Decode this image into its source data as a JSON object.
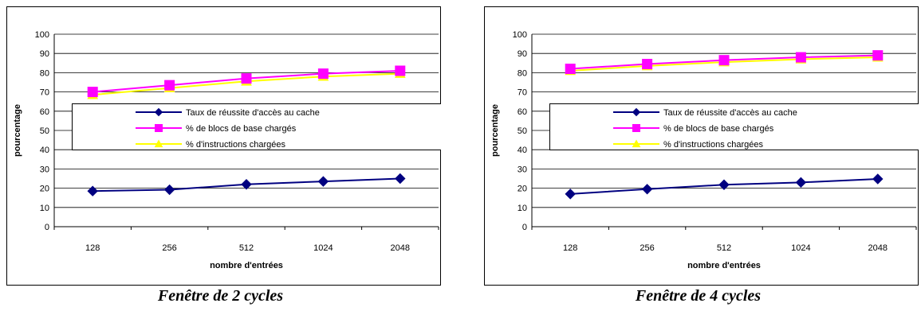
{
  "colors": {
    "series1": "#000080",
    "series2": "#ff00ff",
    "series3": "#ffff00",
    "grid": "#000000",
    "border": "#000000"
  },
  "chart_data": [
    {
      "type": "line",
      "caption": "Fenêtre de 2 cycles",
      "categories": [
        "128",
        "256",
        "512",
        "1024",
        "2048"
      ],
      "xlabel": "nombre d'entrées",
      "ylabel": "pourcentage",
      "ylim": [
        0,
        100
      ],
      "yticks": [
        0,
        10,
        20,
        30,
        40,
        50,
        60,
        70,
        80,
        90,
        100
      ],
      "grid": true,
      "legend_position": "center",
      "series": [
        {
          "name": "Taux de réussite d'accès au cache",
          "marker": "diamond",
          "values": [
            18.5,
            19.2,
            22.0,
            23.5,
            25.0
          ]
        },
        {
          "name": "% de blocs de base chargés",
          "marker": "square",
          "values": [
            70.0,
            73.5,
            77.0,
            79.5,
            81.0
          ]
        },
        {
          "name": "% d'instructions chargées",
          "marker": "triangle",
          "values": [
            68.5,
            72.0,
            75.5,
            78.0,
            79.5
          ]
        }
      ]
    },
    {
      "type": "line",
      "caption": "Fenêtre de 4 cycles",
      "categories": [
        "128",
        "256",
        "512",
        "1024",
        "2048"
      ],
      "xlabel": "nombre d'entrées",
      "ylabel": "pourcentage",
      "ylim": [
        0,
        100
      ],
      "yticks": [
        0,
        10,
        20,
        30,
        40,
        50,
        60,
        70,
        80,
        90,
        100
      ],
      "grid": true,
      "legend_position": "center",
      "series": [
        {
          "name": "Taux de réussite d'accès au cache",
          "marker": "diamond",
          "values": [
            17.0,
            19.5,
            21.8,
            23.0,
            24.8
          ]
        },
        {
          "name": "% de blocs de base chargés",
          "marker": "square",
          "values": [
            82.0,
            84.5,
            86.5,
            88.0,
            89.0
          ]
        },
        {
          "name": "% d'instructions chargées",
          "marker": "triangle",
          "values": [
            81.0,
            83.5,
            85.5,
            87.0,
            88.0
          ]
        }
      ]
    }
  ]
}
